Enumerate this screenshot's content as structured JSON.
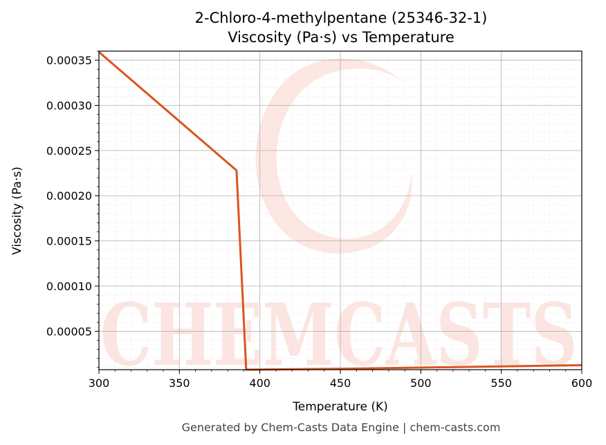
{
  "chart_data": {
    "type": "line",
    "title": "2-Chloro-4-methylpentane (25346-32-1)",
    "subtitle": "Viscosity (Pa·s) vs Temperature",
    "xlabel": "Temperature (K)",
    "ylabel": "Viscosity (Pa·s)",
    "xlim": [
      300,
      600
    ],
    "ylim": [
      7.5e-06,
      0.00036
    ],
    "x_ticks": [
      300,
      350,
      400,
      450,
      500,
      550,
      600
    ],
    "x_tick_labels": [
      "300",
      "350",
      "400",
      "450",
      "500",
      "550",
      "600"
    ],
    "y_ticks": [
      5e-05,
      0.0001,
      0.00015,
      0.0002,
      0.00025,
      0.0003,
      0.00035
    ],
    "y_tick_labels": [
      "0.00005",
      "0.00010",
      "0.00015",
      "0.00020",
      "0.00025",
      "0.00030",
      "0.00035"
    ],
    "grid": true,
    "series": [
      {
        "color": "#d9541e",
        "x": [
          300,
          385.5,
          391.5,
          450,
          600
        ],
        "y": [
          0.000359,
          0.000228,
          7.5e-06,
          8.5e-06,
          1.25e-05
        ]
      }
    ]
  },
  "watermark": {
    "text": "CHEMCASTS",
    "color": "#fbd0c8"
  },
  "footer": {
    "text": "Generated by Chem-Casts Data Engine | chem-casts.com"
  }
}
